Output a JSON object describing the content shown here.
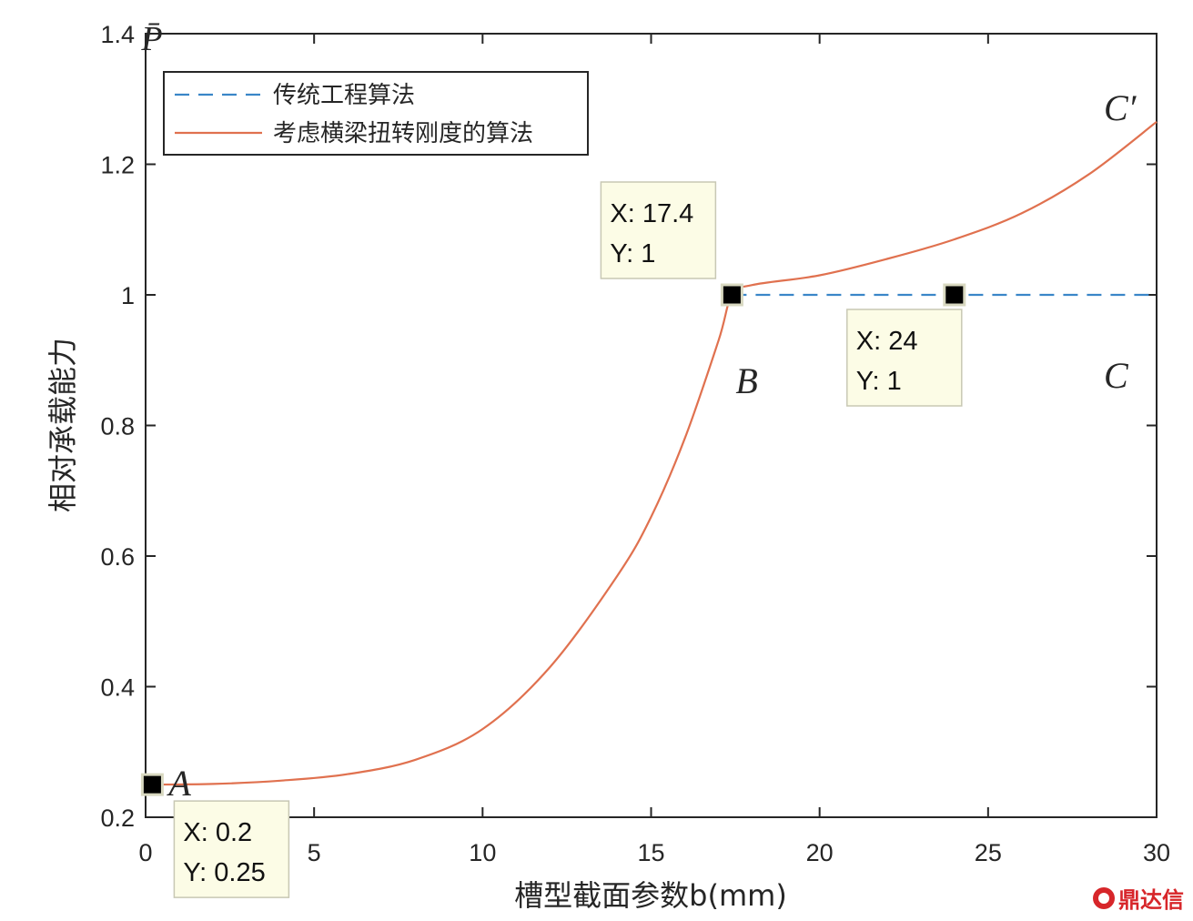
{
  "chart_data": {
    "type": "line",
    "xlabel": "槽型截面参数b(mm)",
    "ylabel": "相对承载能力",
    "ylabel_symbol": "P̄",
    "xlim": [
      0,
      30
    ],
    "ylim": [
      0.2,
      1.4
    ],
    "xticks": [
      "0",
      "5",
      "10",
      "15",
      "20",
      "25",
      "30"
    ],
    "yticks": [
      "0.2",
      "0.4",
      "0.6",
      "0.8",
      "1",
      "1.2",
      "1.4"
    ],
    "grid": false,
    "legend_position": "top-left",
    "series": [
      {
        "name": "传统工程算法",
        "style": "dashed",
        "color": "#3a86c8",
        "x": [
          17.4,
          20,
          24,
          30
        ],
        "y": [
          1,
          1,
          1,
          1
        ]
      },
      {
        "name": "考虑横梁扭转刚度的算法",
        "style": "solid",
        "color": "#e0714f",
        "x": [
          0.2,
          2,
          4,
          6,
          8,
          10,
          12,
          14,
          15,
          16,
          17,
          17.4,
          18,
          20,
          22,
          24,
          26,
          28,
          30
        ],
        "y": [
          0.25,
          0.251,
          0.256,
          0.266,
          0.288,
          0.335,
          0.43,
          0.57,
          0.66,
          0.78,
          0.93,
          1.0,
          1.015,
          1.03,
          1.055,
          1.085,
          1.125,
          1.185,
          1.265
        ]
      }
    ],
    "datatips": [
      {
        "x": 0.2,
        "y": 0.25,
        "x_label": "X: 0.2",
        "y_label": "Y: 0.25"
      },
      {
        "x": 17.4,
        "y": 1,
        "x_label": "X: 17.4",
        "y_label": "Y: 1"
      },
      {
        "x": 24,
        "y": 1,
        "x_label": "X: 24",
        "y_label": "Y: 1"
      }
    ],
    "point_labels": [
      {
        "text": "A",
        "x": 0.2,
        "y": 0.25
      },
      {
        "text": "B",
        "x": 17.4,
        "y": 1
      },
      {
        "text": "C",
        "x": 30,
        "y": 1
      },
      {
        "text": "C′",
        "x": 30,
        "y": 1.265
      }
    ]
  },
  "watermark": "鼎达信",
  "colors": {
    "axis": "#262626",
    "tip_bg": "#fcfce6",
    "tip_border": "#c8c8b4"
  }
}
